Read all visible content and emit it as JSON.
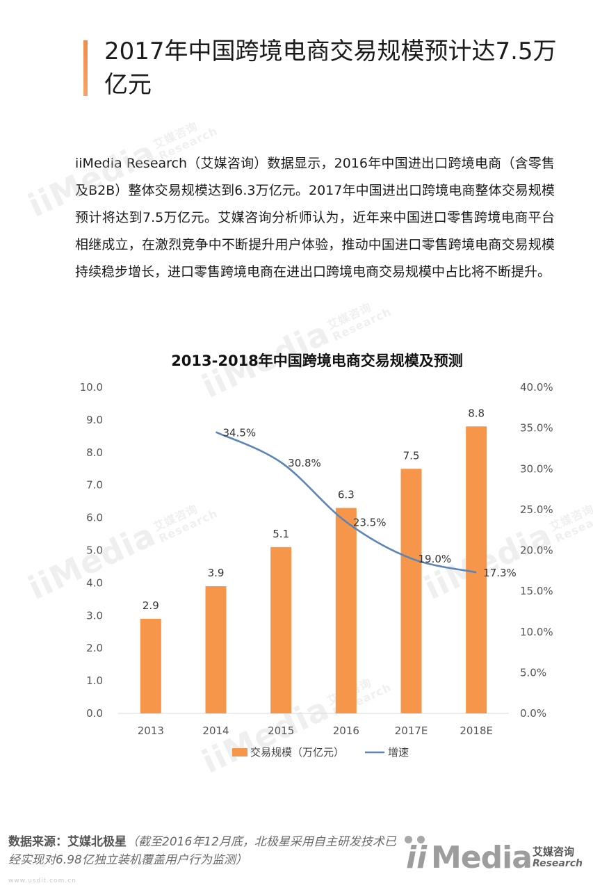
{
  "header": {
    "title": "2017年中国跨境电商交易规模预计达7.5万亿元"
  },
  "body_text": "iiMedia Research（艾媒咨询）数据显示，2016年中国进出口跨境电商（含零售及B2B）整体交易规模达到6.3万亿元。2017年中国进出口跨境电商整体交易规模预计将达到7.5万亿元。艾媒咨询分析师认为，近年来中国进口零售跨境电商平台相继成立，在激烈竞争中不断提升用户体验，推动中国进口零售跨境电商交易规模持续稳步增长，进口零售跨境电商在进出口跨境电商交易规模中占比将不断提升。",
  "watermark": {
    "text": "iiMedia",
    "cn": "艾媒咨询",
    "en": "Research"
  },
  "chart_data": {
    "type": "bar",
    "title": "2013-2018年中国跨境电商交易规模及预测",
    "categories": [
      "2013",
      "2014",
      "2015",
      "2016",
      "2017E",
      "2018E"
    ],
    "series": [
      {
        "name": "交易规模（万亿元）",
        "type": "bar",
        "axis": "left",
        "color": "#f5964a",
        "values": [
          2.9,
          3.9,
          5.1,
          6.3,
          7.5,
          8.8
        ],
        "labels": [
          "2.9",
          "3.9",
          "5.1",
          "6.3",
          "7.5",
          "8.8"
        ]
      },
      {
        "name": "增速",
        "type": "line",
        "axis": "right",
        "color": "#5b84b8",
        "values": [
          null,
          34.5,
          30.8,
          23.5,
          19.0,
          17.3
        ],
        "labels": [
          "",
          "34.5%",
          "30.8%",
          "23.5%",
          "19.0%",
          "17.3%"
        ]
      }
    ],
    "y_left": {
      "range": [
        0,
        10
      ],
      "ticks": [
        "0.0",
        "1.0",
        "2.0",
        "3.0",
        "4.0",
        "5.0",
        "6.0",
        "7.0",
        "8.0",
        "9.0",
        "10.0"
      ]
    },
    "y_right": {
      "range": [
        0,
        40
      ],
      "ticks": [
        "0.0%",
        "5.0%",
        "10.0%",
        "15.0%",
        "20.0%",
        "25.0%",
        "30.0%",
        "35.0%",
        "40.0%"
      ]
    },
    "grid": false,
    "legend_position": "bottom"
  },
  "footer": {
    "source_label": "数据来源：艾媒北极星",
    "source_note": "（截至2016年12月底，北极星采用自主研发技术已经实现对6.98亿独立装机覆盖用户行为监测）",
    "site": "www.usdit.com.cn"
  },
  "logo": {
    "wordmark": "Media",
    "cn": "艾媒咨询",
    "en": "Research"
  }
}
